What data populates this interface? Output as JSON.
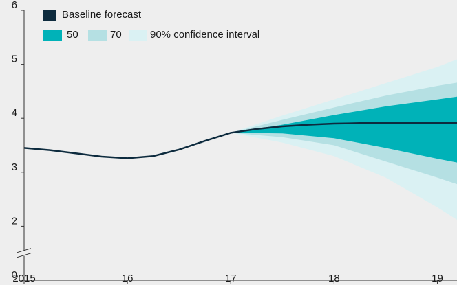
{
  "chart_data": {
    "type": "fan",
    "x": [
      2015,
      2015.25,
      2015.5,
      2015.75,
      2016,
      2016.25,
      2016.5,
      2016.75,
      2017,
      2017.25,
      2017.5,
      2017.75,
      2018,
      2018.25,
      2018.5,
      2018.75,
      2019,
      2019.19
    ],
    "series": [
      {
        "name": "Baseline forecast",
        "color": "#0d2b3e",
        "values": [
          3.45,
          3.41,
          3.35,
          3.29,
          3.26,
          3.3,
          3.42,
          3.58,
          3.73,
          3.8,
          3.85,
          3.88,
          3.9,
          3.91,
          3.91,
          3.91,
          3.91,
          3.91
        ]
      }
    ],
    "bands": [
      {
        "name": "90% confidence interval",
        "color": "#daf1f3",
        "x": [
          2017,
          2017.5,
          2018,
          2018.5,
          2019,
          2019.19
        ],
        "upper": [
          3.73,
          4.05,
          4.35,
          4.65,
          4.95,
          5.09
        ],
        "lower": [
          3.73,
          3.55,
          3.3,
          2.9,
          2.35,
          2.12
        ]
      },
      {
        "name": "70",
        "color": "#b5e0e3",
        "x": [
          2017,
          2017.5,
          2018,
          2018.5,
          2019,
          2019.19
        ],
        "upper": [
          3.73,
          3.97,
          4.2,
          4.42,
          4.6,
          4.66
        ],
        "lower": [
          3.73,
          3.65,
          3.5,
          3.2,
          2.9,
          2.78
        ]
      },
      {
        "name": "50",
        "color": "#00b2b8",
        "x": [
          2017,
          2017.5,
          2018,
          2018.5,
          2019,
          2019.19
        ],
        "upper": [
          3.73,
          3.88,
          4.06,
          4.22,
          4.35,
          4.4
        ],
        "lower": [
          3.73,
          3.72,
          3.63,
          3.45,
          3.25,
          3.18
        ]
      }
    ],
    "xlim": [
      2015,
      2019.19
    ],
    "xticks": [
      {
        "value": 2015,
        "label": "2015"
      },
      {
        "value": 2016,
        "label": "16"
      },
      {
        "value": 2017,
        "label": "17"
      },
      {
        "value": 2018,
        "label": "18"
      },
      {
        "value": 2019,
        "label": "19"
      }
    ],
    "ylim": [
      0,
      6
    ],
    "yticks": [
      0,
      2,
      3,
      4,
      5,
      6
    ],
    "axis_break": [
      0,
      2
    ]
  }
}
